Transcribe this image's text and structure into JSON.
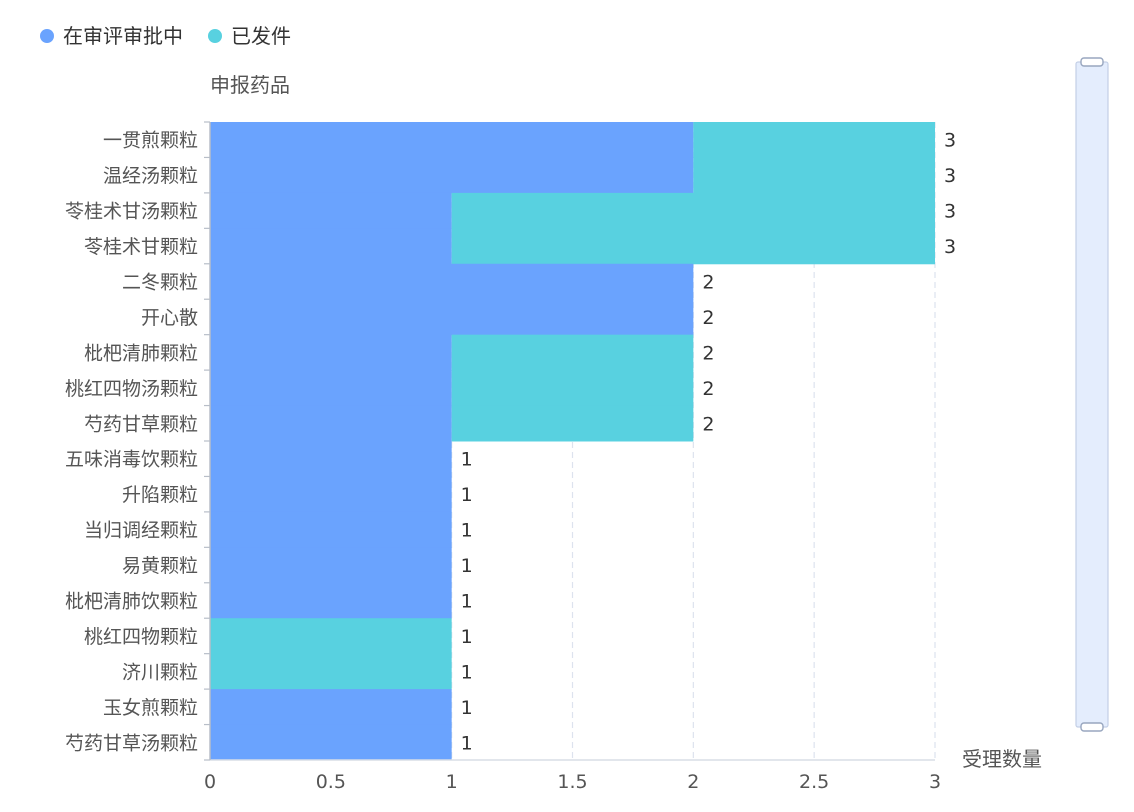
{
  "chart_data": {
    "type": "bar",
    "orientation": "horizontal",
    "stacked": true,
    "ylabel": "申报药品",
    "xlabel": "受理数量",
    "xlim": [
      0,
      3
    ],
    "x_ticks": [
      "0",
      "0.5",
      "1",
      "1.5",
      "2",
      "2.5",
      "3"
    ],
    "grid": "vertical dashed",
    "legend_position": "top-left",
    "categories": [
      "一贯煎颗粒",
      "温经汤颗粒",
      "苓桂术甘汤颗粒",
      "苓桂术甘颗粒",
      "二冬颗粒",
      "开心散",
      "枇杷清肺颗粒",
      "桃红四物汤颗粒",
      "芍药甘草颗粒",
      "五味消毒饮颗粒",
      "升陷颗粒",
      "当归调经颗粒",
      "易黄颗粒",
      "枇杷清肺饮颗粒",
      "桃红四物颗粒",
      "济川颗粒",
      "玉女煎颗粒",
      "芍药甘草汤颗粒"
    ],
    "series": [
      {
        "name": "在审评审批中",
        "color": "#6aa3fe",
        "values": [
          2,
          2,
          1,
          1,
          2,
          2,
          1,
          1,
          1,
          1,
          1,
          1,
          1,
          1,
          0,
          0,
          1,
          1
        ]
      },
      {
        "name": "已发件",
        "color": "#58d1e0",
        "values": [
          1,
          1,
          2,
          2,
          0,
          0,
          1,
          1,
          1,
          0,
          0,
          0,
          0,
          0,
          1,
          1,
          0,
          0
        ]
      }
    ],
    "totals": [
      3,
      3,
      3,
      3,
      2,
      2,
      2,
      2,
      2,
      1,
      1,
      1,
      1,
      1,
      1,
      1,
      1,
      1
    ]
  },
  "datazoom": {
    "orientation": "vertical",
    "position": "right"
  }
}
